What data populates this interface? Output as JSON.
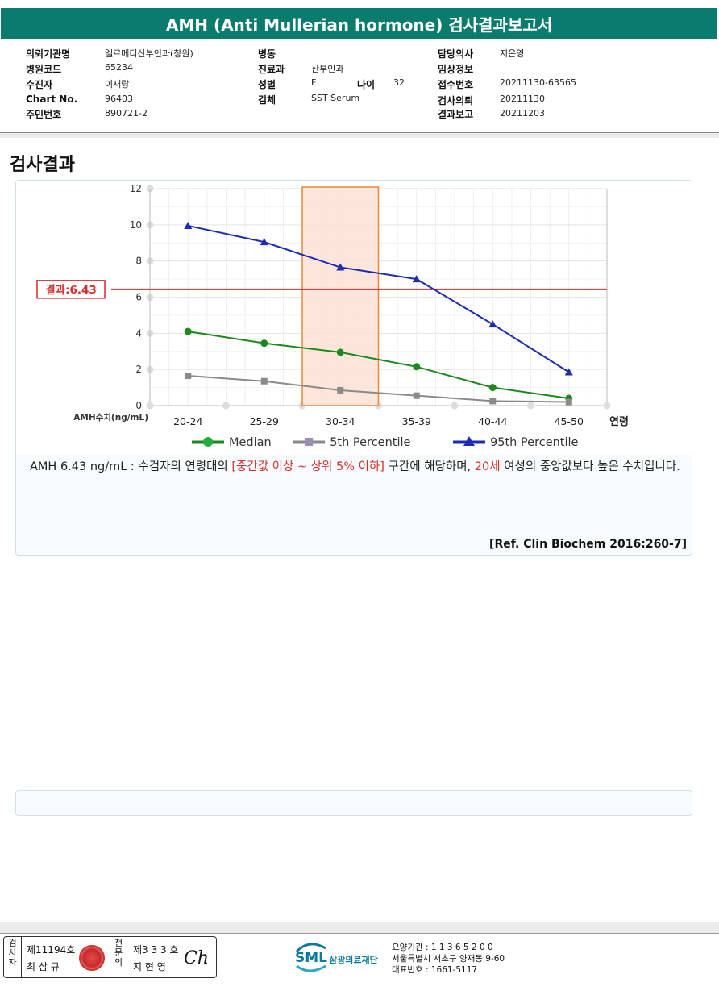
{
  "header": {
    "title": "AMH (Anti Mullerian hormone) 검사결과보고서"
  },
  "info": {
    "col1": [
      {
        "label": "의뢰기관명",
        "value": "엘르메디산부인과(창원)"
      },
      {
        "label": "병원코드",
        "value": "65234"
      },
      {
        "label": "수진자",
        "value": "이새랑"
      },
      {
        "label": "Chart No.",
        "value": "96403"
      },
      {
        "label": "주민번호",
        "value": "890721-2"
      }
    ],
    "col2": [
      {
        "label": "병동",
        "value": ""
      },
      {
        "label": "진료과",
        "value": "산부인과"
      },
      {
        "label": "성별",
        "value": "F"
      },
      {
        "label": "검체",
        "value": "SST Serum"
      }
    ],
    "age": {
      "label": "나이",
      "value": "32"
    },
    "col3": [
      {
        "label": "담당의사",
        "value": "지은영"
      },
      {
        "label": "임상정보",
        "value": ""
      },
      {
        "label": "접수번호",
        "value": "20211130-63565"
      },
      {
        "label": "검사의뢰",
        "value": "20211130"
      },
      {
        "label": "결과보고",
        "value": "20211203"
      }
    ]
  },
  "section_title": "검사결과",
  "chart_data": {
    "type": "line",
    "categories": [
      "20-24",
      "25-29",
      "30-34",
      "35-39",
      "40-44",
      "45-50"
    ],
    "xlabel": "연령",
    "ylabel": "AMH수치(ng/mL)",
    "ylim": [
      0,
      12
    ],
    "yticks": [
      "0",
      "2",
      "4",
      "6",
      "8",
      "10",
      "12"
    ],
    "grid": true,
    "legend_position": "bottom",
    "highlight_category": "30-34",
    "result": {
      "label": "결과:6.43",
      "value": 6.43,
      "color": "#d32b2b"
    },
    "series": [
      {
        "name": "Median",
        "color": "#1a8a1a",
        "marker": "circle",
        "values": [
          4.1,
          3.45,
          2.95,
          2.15,
          1.0,
          0.4
        ]
      },
      {
        "name": "5th Percentile",
        "color": "#8a8a8a",
        "marker": "square",
        "values": [
          1.65,
          1.35,
          0.85,
          0.55,
          0.25,
          0.2
        ]
      },
      {
        "name": "95th Percentile",
        "color": "#1c2bb4",
        "marker": "triangle",
        "values": [
          9.95,
          9.05,
          7.65,
          7.0,
          4.5,
          1.85
        ]
      }
    ]
  },
  "interpretation": {
    "part1": "AMH  6.43 ng/mL : 수검자의 연령대의 ",
    "range": "[중간값 이상 ~ 상위 5% 이하]",
    "part2": "  구간에 해당하며, ",
    "age": "20세",
    "part3": " 여성의 중앙값보다 높은 수치입니다."
  },
  "reference": "[Ref. Clin Biochem 2016:260-7]",
  "footer": {
    "examiner_label": "검사자",
    "examiner_no": "제11194호",
    "examiner_name": "최 삼 규",
    "specialist_label": "전문의",
    "specialist_no": "제3 3 3 호",
    "specialist_name": "지 현 영",
    "signature": "Ch",
    "org_abbr": "SML",
    "org_name": "삼광의료재단",
    "org_lines": [
      "요양기관 : 1 1 3 6 5 2 0 0",
      "서울특별시 서초구 양재동 9-60",
      "대표번호 : 1661-5117"
    ]
  }
}
